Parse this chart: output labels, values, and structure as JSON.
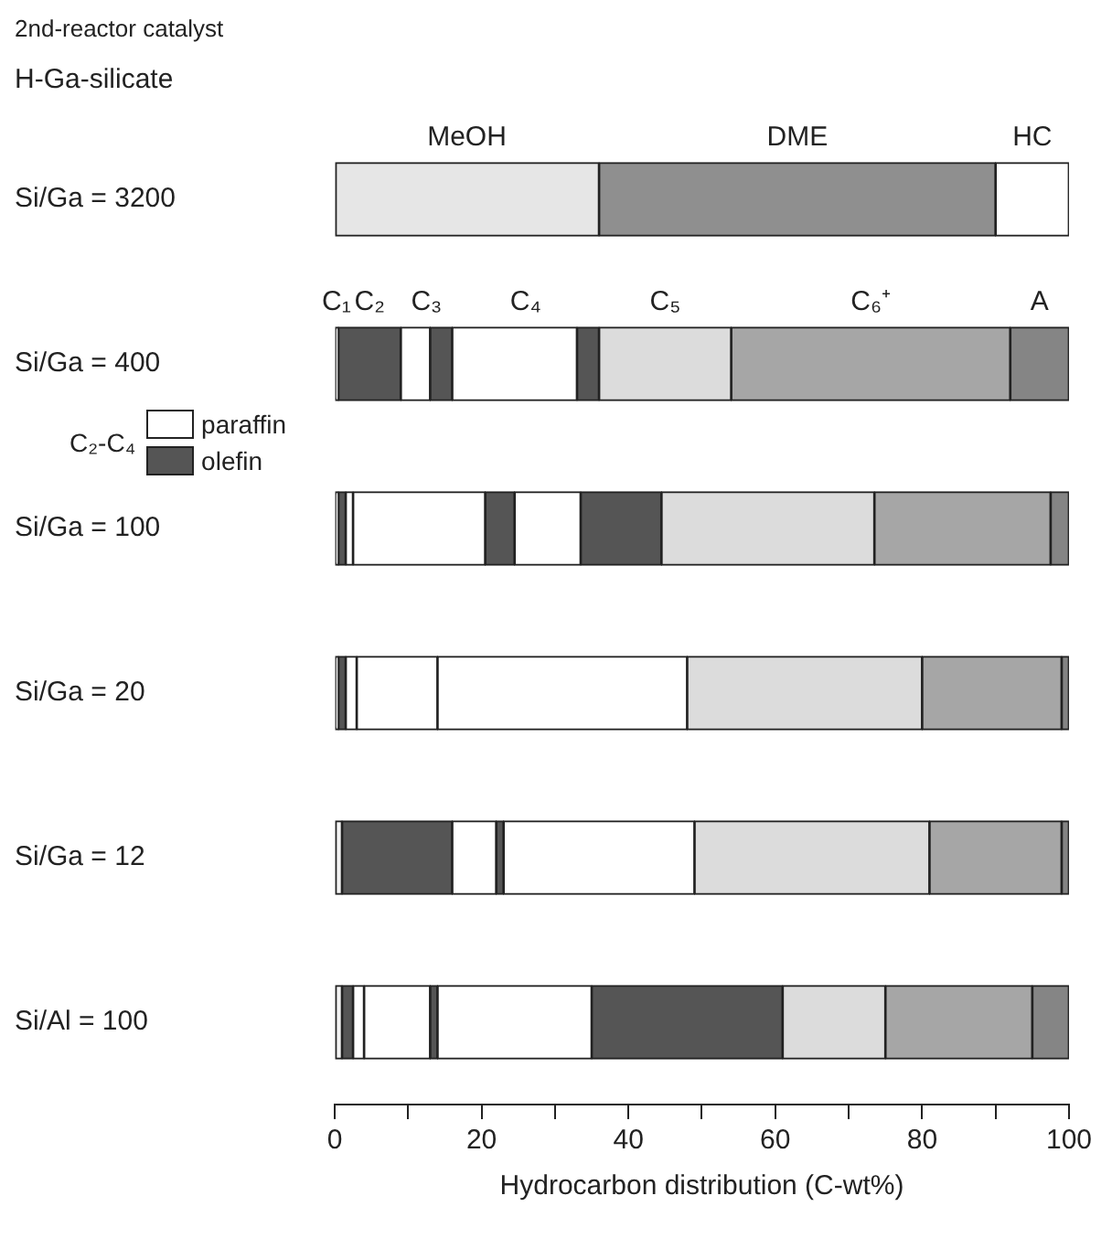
{
  "chart_data": {
    "type": "bar",
    "title": "2nd-reactor catalyst",
    "subtitle": "H-Ga-silicate",
    "xlabel": "Hydrocarbon distribution (C-wt%)",
    "orientation": "horizontal",
    "stacked": true,
    "categories": [
      "Si/Ga = 3200",
      "Si/Ga = 400",
      "Si/Ga = 100",
      "Si/Ga = 20",
      "Si/Ga = 12",
      "Si/Al = 100"
    ],
    "series": [
      {
        "name": "MeOH",
        "color": "#e6e6e6",
        "values": [
          36,
          null,
          null,
          null,
          null,
          null
        ]
      },
      {
        "name": "DME",
        "color": "#8f8f8f",
        "values": [
          54,
          null,
          null,
          null,
          null,
          null
        ]
      },
      {
        "name": "HC",
        "color": "#ffffff",
        "values": [
          10,
          null,
          null,
          null,
          null,
          null
        ]
      },
      {
        "name": "C₁",
        "color": "#f4f4f4",
        "values": [
          null,
          0.5,
          0.5,
          0.5,
          1,
          1
        ]
      },
      {
        "name": "C₂",
        "color": "#555555",
        "values": [
          null,
          8.5,
          1,
          1,
          15,
          1.5
        ]
      },
      {
        "color": "#ffffff",
        "values": [
          null,
          0,
          1,
          1.5,
          0,
          1.5
        ]
      },
      {
        "name": "C₃",
        "color": "#ffffff",
        "values": [
          null,
          4,
          18,
          11,
          6,
          9
        ]
      },
      {
        "color": "#555555",
        "values": [
          null,
          3,
          4,
          0,
          1,
          1
        ]
      },
      {
        "name": "C₄",
        "color": "#ffffff",
        "values": [
          null,
          17,
          9,
          34,
          26,
          21
        ]
      },
      {
        "color": "#555555",
        "values": [
          null,
          3,
          11,
          0,
          0,
          26
        ]
      },
      {
        "name": "C₅",
        "color": "#dcdcdc",
        "values": [
          null,
          18,
          29,
          32,
          32,
          14
        ]
      },
      {
        "name": "C₆⁺",
        "color": "#a6a6a6",
        "values": [
          null,
          38,
          24,
          19,
          18,
          20
        ]
      },
      {
        "name": "A",
        "color": "#858585",
        "values": [
          null,
          8,
          2.5,
          1,
          1,
          5
        ]
      }
    ],
    "xlim": [
      0,
      100
    ],
    "xticks": [
      0,
      {
        "value": 10,
        "label": null
      },
      20,
      {
        "value": 30,
        "label": null
      },
      40,
      {
        "value": 50,
        "label": null
      },
      60,
      {
        "value": 70,
        "label": null
      },
      80,
      {
        "value": 90,
        "label": null
      },
      100
    ],
    "legend": "left",
    "legend_title": "C₂-C₄",
    "annotations": [
      "paraffin",
      "olefin"
    ]
  }
}
